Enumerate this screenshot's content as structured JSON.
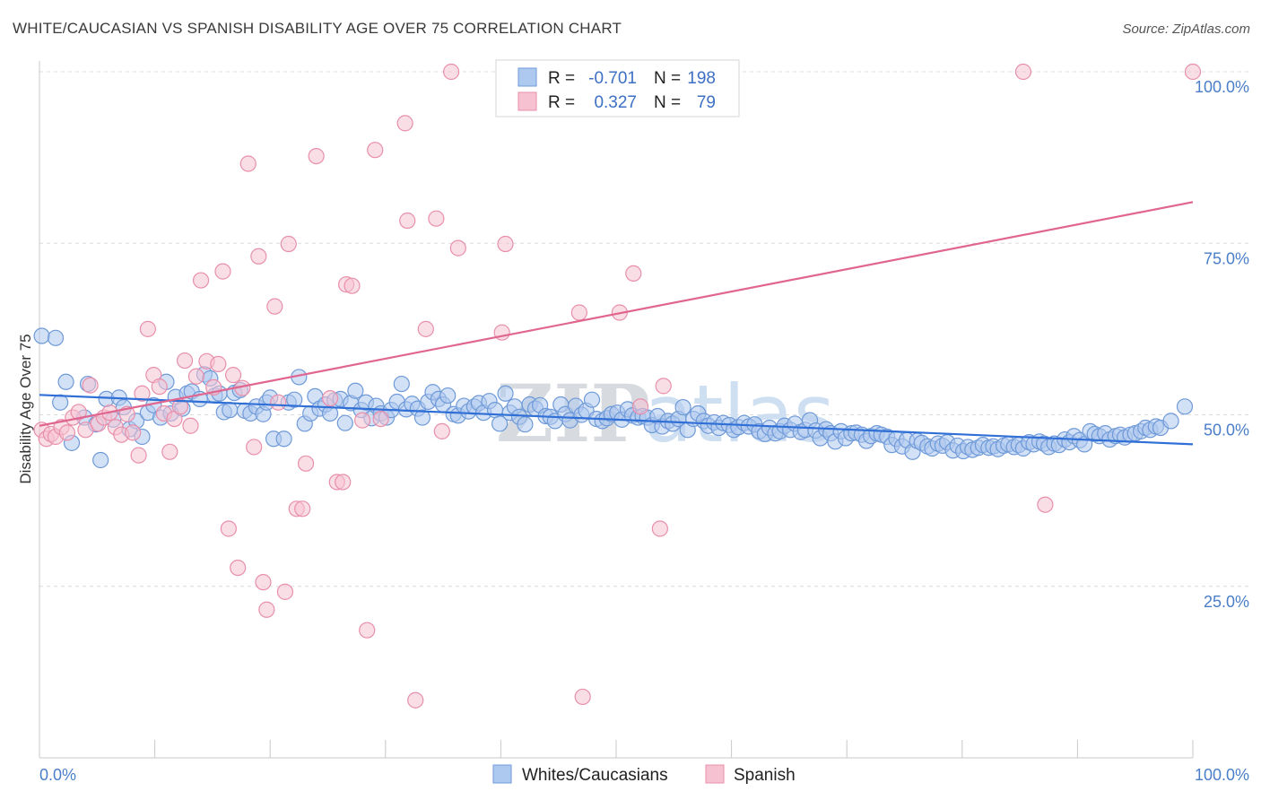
{
  "title": "WHITE/CAUCASIAN VS SPANISH DISABILITY AGE OVER 75 CORRELATION CHART",
  "source": "Source: ZipAtlas.com",
  "watermark": {
    "part1": "ZIP",
    "part2": "atlas"
  },
  "colors": {
    "white_fill": "#aec9ef",
    "white_stroke": "#6f9ad8",
    "white_line": "#2f6fd6",
    "spanish_fill": "#f6c2d2",
    "spanish_stroke": "#e88fab",
    "spanish_line": "#e0668f",
    "tick_text": "#4a7ec8",
    "grid": "#dcdcdc"
  },
  "stats": {
    "r_label": "R =",
    "n_label": "N =",
    "white_r": "-0.701",
    "white_n": "198",
    "spanish_r": "0.327",
    "spanish_n": "79"
  },
  "chart_data": {
    "type": "scatter",
    "title": "WHITE/CAUCASIAN VS SPANISH DISABILITY AGE OVER 75 CORRELATION CHART",
    "xlabel": "",
    "ylabel": "Disability Age Over 75",
    "xlim": [
      0,
      100
    ],
    "ylim": [
      0,
      100
    ],
    "x_tick_labels": [
      "0.0%",
      "100.0%"
    ],
    "y_tick_values": [
      25,
      50,
      75,
      100
    ],
    "y_tick_labels": [
      "25.0%",
      "50.0%",
      "75.0%",
      "100.0%"
    ],
    "grid": "horizontal dashed",
    "legend_position": "bottom-center",
    "series": [
      {
        "name": "Whites/Caucasians",
        "trend": {
          "x": [
            0,
            100
          ],
          "y": [
            52.9,
            45.7
          ]
        },
        "points": [
          [
            0.2,
            61.5
          ],
          [
            1.4,
            61.2
          ],
          [
            1.8,
            51.8
          ],
          [
            2.3,
            54.8
          ],
          [
            2.8,
            45.9
          ],
          [
            3.9,
            49.6
          ],
          [
            4.2,
            54.5
          ],
          [
            4.9,
            48.6
          ],
          [
            5.3,
            43.4
          ],
          [
            5.8,
            52.3
          ],
          [
            6.4,
            49.3
          ],
          [
            6.9,
            52.5
          ],
          [
            7.3,
            51.1
          ],
          [
            7.8,
            47.9
          ],
          [
            8.4,
            49.1
          ],
          [
            8.9,
            46.8
          ],
          [
            9.4,
            50.3
          ],
          [
            9.9,
            51.4
          ],
          [
            10.5,
            49.6
          ],
          [
            11.0,
            54.8
          ],
          [
            11.4,
            50.2
          ],
          [
            11.8,
            52.6
          ],
          [
            12.4,
            50.9
          ],
          [
            12.8,
            53.1
          ],
          [
            13.2,
            53.4
          ],
          [
            13.9,
            52.3
          ],
          [
            14.3,
            55.9
          ],
          [
            14.8,
            55.3
          ],
          [
            15.2,
            52.8
          ],
          [
            15.6,
            53.1
          ],
          [
            16.0,
            50.4
          ],
          [
            16.5,
            50.7
          ],
          [
            16.9,
            53.2
          ],
          [
            17.4,
            53.6
          ],
          [
            17.8,
            50.6
          ],
          [
            18.3,
            50.2
          ],
          [
            18.8,
            51.2
          ],
          [
            19.4,
            50.1
          ],
          [
            19.7,
            51.8
          ],
          [
            20.0,
            52.5
          ],
          [
            20.3,
            46.5
          ],
          [
            21.2,
            46.5
          ],
          [
            21.6,
            51.8
          ],
          [
            22.1,
            52.2
          ],
          [
            22.5,
            55.5
          ],
          [
            23.0,
            48.7
          ],
          [
            23.5,
            50.2
          ],
          [
            23.9,
            52.7
          ],
          [
            24.3,
            50.9
          ],
          [
            24.8,
            51.5
          ],
          [
            25.2,
            50.2
          ],
          [
            25.6,
            52.1
          ],
          [
            26.1,
            52.3
          ],
          [
            26.5,
            48.8
          ],
          [
            27.0,
            51.7
          ],
          [
            27.4,
            53.5
          ],
          [
            27.9,
            50.7
          ],
          [
            28.3,
            51.8
          ],
          [
            28.8,
            49.5
          ],
          [
            29.2,
            51.3
          ],
          [
            29.6,
            50.2
          ],
          [
            30.1,
            49.6
          ],
          [
            30.5,
            50.7
          ],
          [
            31.0,
            51.9
          ],
          [
            31.4,
            54.5
          ],
          [
            31.8,
            50.8
          ],
          [
            32.3,
            51.6
          ],
          [
            32.8,
            50.9
          ],
          [
            33.2,
            49.6
          ],
          [
            33.7,
            51.9
          ],
          [
            34.1,
            53.3
          ],
          [
            34.6,
            52.3
          ],
          [
            35.0,
            51.5
          ],
          [
            35.4,
            52.8
          ],
          [
            35.9,
            50.1
          ],
          [
            36.3,
            49.9
          ],
          [
            36.8,
            51.3
          ],
          [
            37.2,
            50.5
          ],
          [
            37.7,
            51.2
          ],
          [
            38.1,
            51.7
          ],
          [
            38.5,
            50.3
          ],
          [
            39.0,
            52.0
          ],
          [
            39.5,
            50.7
          ],
          [
            39.9,
            48.7
          ],
          [
            40.4,
            53.1
          ],
          [
            40.8,
            50.3
          ],
          [
            41.2,
            51.2
          ],
          [
            41.6,
            49.7
          ],
          [
            42.1,
            48.6
          ],
          [
            42.5,
            51.5
          ],
          [
            43.0,
            50.9
          ],
          [
            43.4,
            51.4
          ],
          [
            43.9,
            49.8
          ],
          [
            44.3,
            49.7
          ],
          [
            44.7,
            49.1
          ],
          [
            45.2,
            51.5
          ],
          [
            45.6,
            50.1
          ],
          [
            46.0,
            49.2
          ],
          [
            46.5,
            51.3
          ],
          [
            47.0,
            50.0
          ],
          [
            47.4,
            50.6
          ],
          [
            47.9,
            52.2
          ],
          [
            48.3,
            49.4
          ],
          [
            48.8,
            49.1
          ],
          [
            49.2,
            49.5
          ],
          [
            49.6,
            50.1
          ],
          [
            50.1,
            50.3
          ],
          [
            50.5,
            49.3
          ],
          [
            51.0,
            50.8
          ],
          [
            51.4,
            49.9
          ],
          [
            51.9,
            49.6
          ],
          [
            52.3,
            49.8
          ],
          [
            52.7,
            49.6
          ],
          [
            53.1,
            48.5
          ],
          [
            53.6,
            49.8
          ],
          [
            54.0,
            48.3
          ],
          [
            54.5,
            49.1
          ],
          [
            54.9,
            48.7
          ],
          [
            55.4,
            49.4
          ],
          [
            55.8,
            51.1
          ],
          [
            56.2,
            47.8
          ],
          [
            56.7,
            49.4
          ],
          [
            57.1,
            50.2
          ],
          [
            57.6,
            49.1
          ],
          [
            58.0,
            48.4
          ],
          [
            58.5,
            48.9
          ],
          [
            58.9,
            48.1
          ],
          [
            59.3,
            48.8
          ],
          [
            59.8,
            48.5
          ],
          [
            60.2,
            47.8
          ],
          [
            60.6,
            48.2
          ],
          [
            61.1,
            48.8
          ],
          [
            61.5,
            48.3
          ],
          [
            62.0,
            48.6
          ],
          [
            62.4,
            47.6
          ],
          [
            62.9,
            47.2
          ],
          [
            63.3,
            48.1
          ],
          [
            63.8,
            47.3
          ],
          [
            64.2,
            47.6
          ],
          [
            64.6,
            48.4
          ],
          [
            65.1,
            47.8
          ],
          [
            65.5,
            48.7
          ],
          [
            66.0,
            47.5
          ],
          [
            66.4,
            47.8
          ],
          [
            66.8,
            49.2
          ],
          [
            67.3,
            47.7
          ],
          [
            67.7,
            46.6
          ],
          [
            68.2,
            47.9
          ],
          [
            68.6,
            47.3
          ],
          [
            69.0,
            46.1
          ],
          [
            69.5,
            47.6
          ],
          [
            69.9,
            46.6
          ],
          [
            70.4,
            47.3
          ],
          [
            70.8,
            47.4
          ],
          [
            71.3,
            47.1
          ],
          [
            71.7,
            46.2
          ],
          [
            72.1,
            46.9
          ],
          [
            72.6,
            47.3
          ],
          [
            73.0,
            47.1
          ],
          [
            73.5,
            46.8
          ],
          [
            73.9,
            45.6
          ],
          [
            74.3,
            46.5
          ],
          [
            74.8,
            45.4
          ],
          [
            75.2,
            46.3
          ],
          [
            75.7,
            44.6
          ],
          [
            76.1,
            46.2
          ],
          [
            76.5,
            45.9
          ],
          [
            77.0,
            45.4
          ],
          [
            77.4,
            45.1
          ],
          [
            77.9,
            45.8
          ],
          [
            78.3,
            45.5
          ],
          [
            78.7,
            46.0
          ],
          [
            79.2,
            44.8
          ],
          [
            79.6,
            45.5
          ],
          [
            80.1,
            44.7
          ],
          [
            80.5,
            45.3
          ],
          [
            80.9,
            44.9
          ],
          [
            81.4,
            45.2
          ],
          [
            81.8,
            45.6
          ],
          [
            82.3,
            45.2
          ],
          [
            82.7,
            45.4
          ],
          [
            83.1,
            45.0
          ],
          [
            83.6,
            45.5
          ],
          [
            84.0,
            45.7
          ],
          [
            84.5,
            45.3
          ],
          [
            84.9,
            45.6
          ],
          [
            85.3,
            45.1
          ],
          [
            85.8,
            46.0
          ],
          [
            86.2,
            45.7
          ],
          [
            86.7,
            46.1
          ],
          [
            87.1,
            45.8
          ],
          [
            87.5,
            45.3
          ],
          [
            88.0,
            45.8
          ],
          [
            88.4,
            45.6
          ],
          [
            88.9,
            46.4
          ],
          [
            89.3,
            46.0
          ],
          [
            89.7,
            46.9
          ],
          [
            90.2,
            46.3
          ],
          [
            90.6,
            45.7
          ],
          [
            91.1,
            47.6
          ],
          [
            91.5,
            47.2
          ],
          [
            91.9,
            46.9
          ],
          [
            92.4,
            47.3
          ],
          [
            92.8,
            46.4
          ],
          [
            93.3,
            46.9
          ],
          [
            93.7,
            47.1
          ],
          [
            94.1,
            46.7
          ],
          [
            94.6,
            47.1
          ],
          [
            95.0,
            47.3
          ],
          [
            95.5,
            47.6
          ],
          [
            95.9,
            48.1
          ],
          [
            96.3,
            47.8
          ],
          [
            96.8,
            48.3
          ],
          [
            97.2,
            48.1
          ],
          [
            98.1,
            49.1
          ],
          [
            99.3,
            51.2
          ]
        ]
      },
      {
        "name": "Spanish",
        "trend": {
          "x": [
            0,
            100
          ],
          "y": [
            48.4,
            81.0
          ]
        },
        "points": [
          [
            0.2,
            47.8
          ],
          [
            0.6,
            46.5
          ],
          [
            1.0,
            47.2
          ],
          [
            1.4,
            46.8
          ],
          [
            1.9,
            48.2
          ],
          [
            2.4,
            47.4
          ],
          [
            2.9,
            49.6
          ],
          [
            3.4,
            50.4
          ],
          [
            4.0,
            47.8
          ],
          [
            4.4,
            54.3
          ],
          [
            5.1,
            48.7
          ],
          [
            5.6,
            49.6
          ],
          [
            6.1,
            50.3
          ],
          [
            6.6,
            48.2
          ],
          [
            7.1,
            47.1
          ],
          [
            7.6,
            50.1
          ],
          [
            8.1,
            47.4
          ],
          [
            8.6,
            44.1
          ],
          [
            8.9,
            53.1
          ],
          [
            9.4,
            62.5
          ],
          [
            9.9,
            55.8
          ],
          [
            10.4,
            54.1
          ],
          [
            10.8,
            50.2
          ],
          [
            11.3,
            44.6
          ],
          [
            11.7,
            49.4
          ],
          [
            12.2,
            51.2
          ],
          [
            12.6,
            57.9
          ],
          [
            13.1,
            48.4
          ],
          [
            13.6,
            55.6
          ],
          [
            14.0,
            69.6
          ],
          [
            14.5,
            57.8
          ],
          [
            15.1,
            54.0
          ],
          [
            15.5,
            57.4
          ],
          [
            15.9,
            70.9
          ],
          [
            16.4,
            33.4
          ],
          [
            16.8,
            55.8
          ],
          [
            17.2,
            27.7
          ],
          [
            17.6,
            53.9
          ],
          [
            18.1,
            86.6
          ],
          [
            18.6,
            45.3
          ],
          [
            19.0,
            73.1
          ],
          [
            19.4,
            25.6
          ],
          [
            19.7,
            21.6
          ],
          [
            20.4,
            65.8
          ],
          [
            20.7,
            51.8
          ],
          [
            21.3,
            24.2
          ],
          [
            21.6,
            74.9
          ],
          [
            22.3,
            36.3
          ],
          [
            22.8,
            36.3
          ],
          [
            23.1,
            42.9
          ],
          [
            24.0,
            87.7
          ],
          [
            25.2,
            52.4
          ],
          [
            25.8,
            40.2
          ],
          [
            26.3,
            40.2
          ],
          [
            26.6,
            69.0
          ],
          [
            27.1,
            68.8
          ],
          [
            28.0,
            49.2
          ],
          [
            28.4,
            18.6
          ],
          [
            29.1,
            88.6
          ],
          [
            29.6,
            49.4
          ],
          [
            31.7,
            92.5
          ],
          [
            31.9,
            78.3
          ],
          [
            32.6,
            8.4
          ],
          [
            33.5,
            62.5
          ],
          [
            34.4,
            78.6
          ],
          [
            34.9,
            47.6
          ],
          [
            35.7,
            100.0
          ],
          [
            36.3,
            74.3
          ],
          [
            40.1,
            62.0
          ],
          [
            40.4,
            74.9
          ],
          [
            46.8,
            64.9
          ],
          [
            47.1,
            8.9
          ],
          [
            50.3,
            64.9
          ],
          [
            51.5,
            70.6
          ],
          [
            52.1,
            51.2
          ],
          [
            53.8,
            33.4
          ],
          [
            54.1,
            54.2
          ],
          [
            85.3,
            100.0
          ],
          [
            87.2,
            36.9
          ],
          [
            100.0,
            100.0
          ]
        ]
      }
    ]
  }
}
